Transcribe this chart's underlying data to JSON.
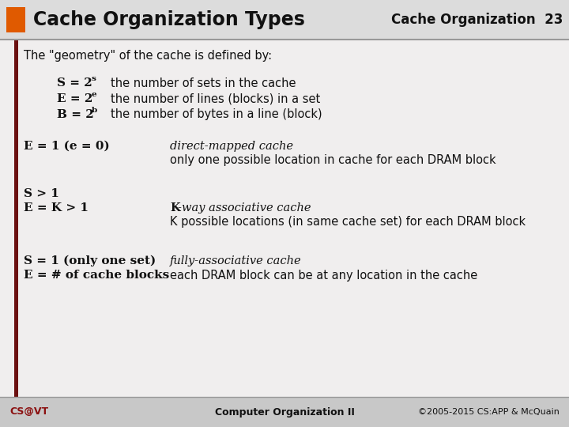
{
  "title": "Cache Organization Types",
  "subtitle": "Cache Organization  23",
  "footer_left": "CS@VT",
  "footer_center": "Computer Organization II",
  "footer_right": "©2005-2015 CS:APP & McQuain",
  "orange_color": "#e05a00",
  "dark_red_bar": "#6b1010",
  "bg_color": "#c8c8c8",
  "content_bg": "#f0eeee",
  "header_bg": "#dcdcdc",
  "line_color": "#aaaaaa"
}
